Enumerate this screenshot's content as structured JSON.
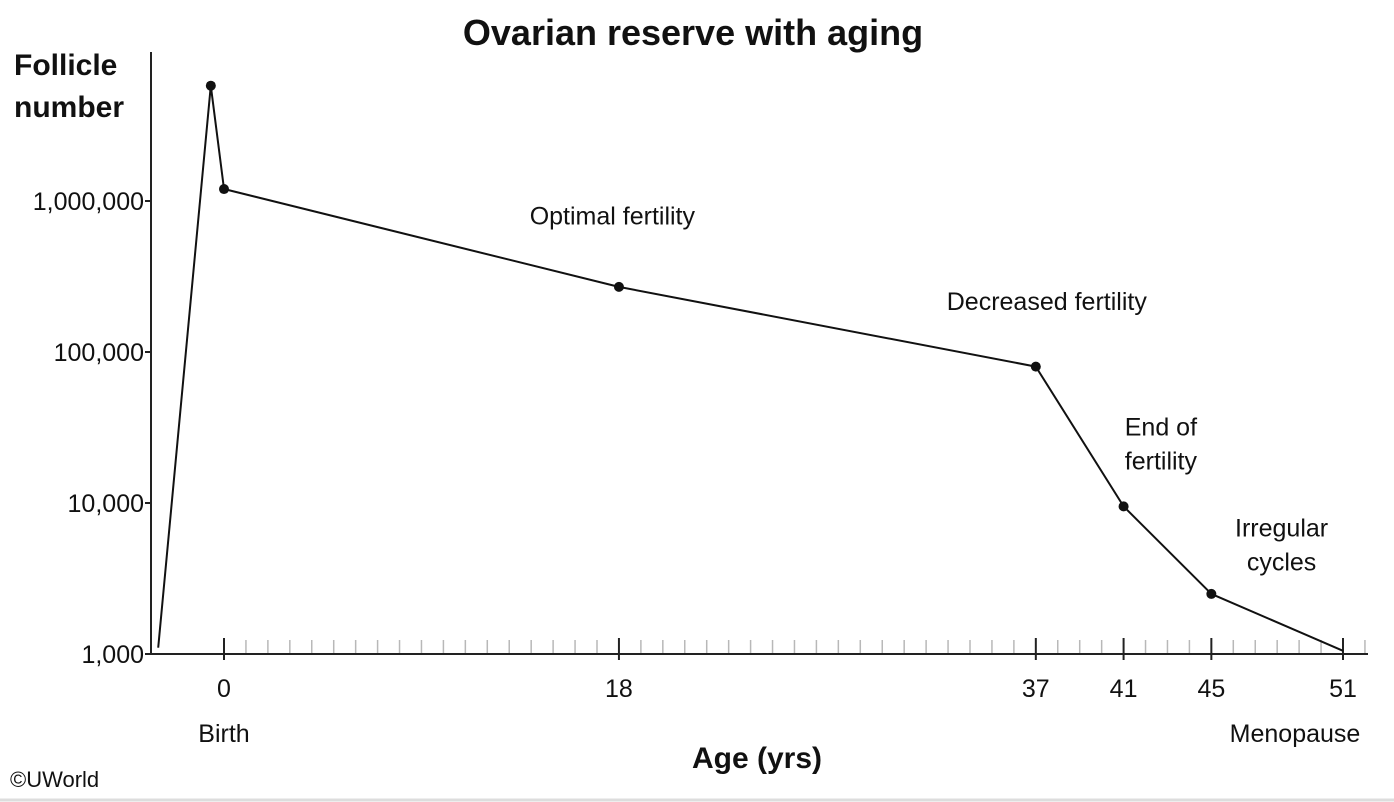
{
  "chart_data": {
    "type": "line",
    "title": "Ovarian reserve with aging",
    "ylabel_lines": [
      "Follicle",
      "number"
    ],
    "xlabel": "Age (yrs)",
    "yscale": "log",
    "ylim": [
      1000,
      10000000
    ],
    "yticks": [
      {
        "value": 1000,
        "label": "1,000"
      },
      {
        "value": 10000,
        "label": "10,000"
      },
      {
        "value": 100000,
        "label": "100,000"
      },
      {
        "value": 1000000,
        "label": "1,000,000"
      }
    ],
    "xticks": [
      {
        "value": 0,
        "label": "0",
        "sublabel": "Birth"
      },
      {
        "value": 18,
        "label": "18",
        "sublabel": ""
      },
      {
        "value": 37,
        "label": "37",
        "sublabel": ""
      },
      {
        "value": 41,
        "label": "41",
        "sublabel": ""
      },
      {
        "value": 45,
        "label": "45",
        "sublabel": ""
      },
      {
        "value": 51,
        "label": "51",
        "sublabel": "Menopause"
      }
    ],
    "series": [
      {
        "points": [
          {
            "x": -3.0,
            "y": 1100,
            "marker": false
          },
          {
            "x": -0.6,
            "y": 5800000,
            "marker": true
          },
          {
            "x": 0,
            "y": 1200000,
            "marker": true
          },
          {
            "x": 18,
            "y": 270000,
            "marker": true
          },
          {
            "x": 37,
            "y": 80000,
            "marker": true
          },
          {
            "x": 41,
            "y": 9500,
            "marker": true
          },
          {
            "x": 45,
            "y": 2500,
            "marker": true
          },
          {
            "x": 51,
            "y": 1050,
            "marker": false
          }
        ]
      }
    ],
    "annotations": [
      {
        "lines": [
          "Optimal fertility"
        ],
        "x": 17.7,
        "y": 700000
      },
      {
        "lines": [
          "Decreased fertility"
        ],
        "x": 37.5,
        "y": 190000
      },
      {
        "lines": [
          "End of",
          "fertility"
        ],
        "x": 42.7,
        "y": 28000
      },
      {
        "lines": [
          "Irregular",
          "cycles"
        ],
        "x": 48.2,
        "y": 6000
      }
    ],
    "grid": false,
    "legend": "none"
  },
  "copyright": "©UWorld"
}
